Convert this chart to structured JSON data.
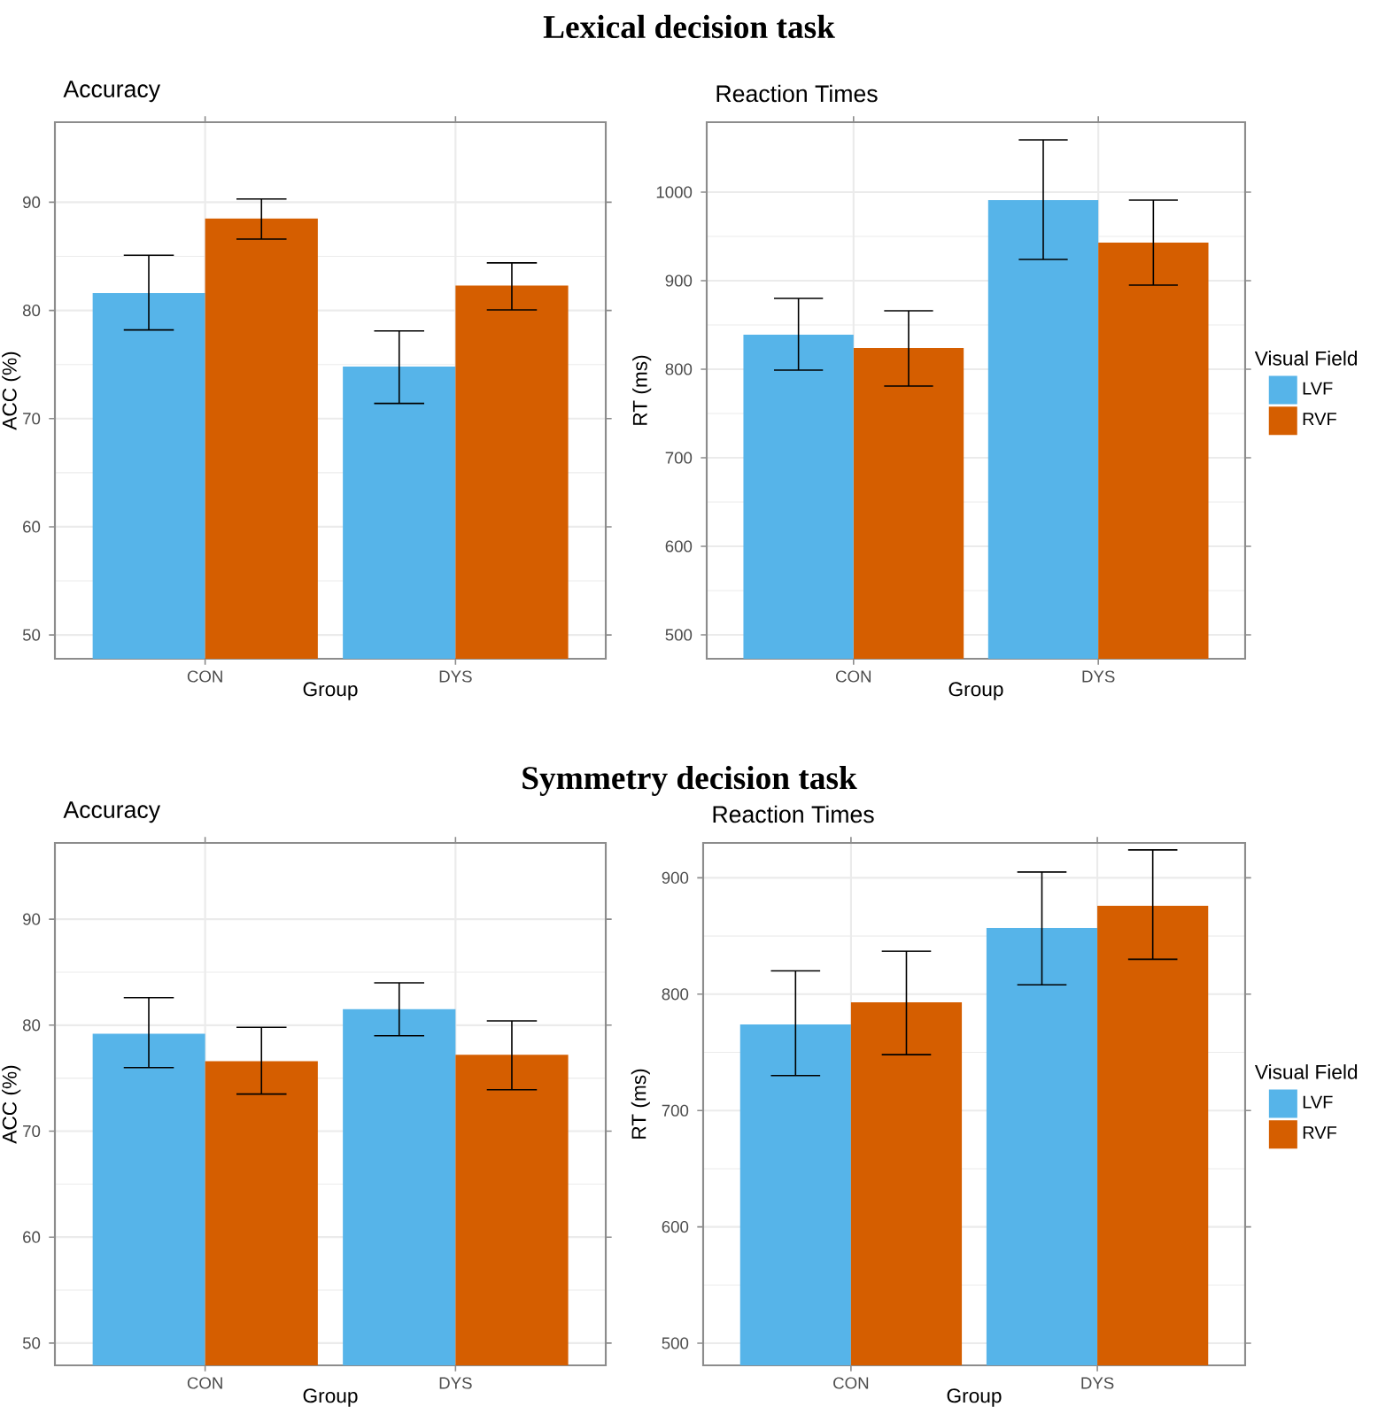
{
  "chart_data": [
    {
      "type": "bar",
      "title": "Accuracy",
      "xlabel": "Group",
      "ylabel": "ACC (%)",
      "annotations": [
        "Lexical decision task"
      ],
      "categories": [
        "CON",
        "DYS"
      ],
      "series": [
        {
          "color": "#56B4E9",
          "values": [
            81.6,
            74.8
          ],
          "errors": [
            [
              78.2,
              85.1
            ],
            [
              71.4,
              78.1
            ]
          ]
        },
        {
          "color": "#D55E00",
          "values": [
            88.5,
            82.3
          ],
          "errors": [
            [
              86.6,
              90.3
            ],
            [
              80.05,
              84.4
            ]
          ]
        }
      ],
      "ylim": [
        47.8,
        97.4
      ],
      "yticks": [
        50,
        60,
        70,
        80,
        90
      ],
      "grid": true,
      "legend": false
    },
    {
      "type": "bar",
      "title": "Reaction Times",
      "xlabel": "Group",
      "ylabel": "RT (ms)",
      "legend_title": "Visual Field",
      "categories": [
        "CON",
        "DYS"
      ],
      "series": [
        {
          "name": "LVF",
          "color": "#56B4E9",
          "values": [
            839,
            991
          ],
          "errors": [
            [
              799,
              880
            ],
            [
              924,
              1059
            ]
          ]
        },
        {
          "name": "RVF",
          "color": "#D55E00",
          "values": [
            824,
            943
          ],
          "errors": [
            [
              781,
              866
            ],
            [
              895,
              991
            ]
          ]
        }
      ],
      "ylim": [
        473,
        1079
      ],
      "yticks": [
        500,
        600,
        700,
        800,
        900,
        1000
      ],
      "grid": true,
      "legend": "right"
    },
    {
      "type": "bar",
      "title": "Accuracy",
      "xlabel": "Group",
      "ylabel": "ACC (%)",
      "annotations": [
        "Symmetry decision task"
      ],
      "categories": [
        "CON",
        "DYS"
      ],
      "series": [
        {
          "color": "#56B4E9",
          "values": [
            79.2,
            81.5
          ],
          "errors": [
            [
              76.0,
              82.6
            ],
            [
              79.0,
              84.0
            ]
          ]
        },
        {
          "color": "#D55E00",
          "values": [
            76.6,
            77.2
          ],
          "errors": [
            [
              73.5,
              79.8
            ],
            [
              73.9,
              80.4
            ]
          ]
        }
      ],
      "ylim": [
        47.9,
        97.2
      ],
      "yticks": [
        50,
        60,
        70,
        80,
        90
      ],
      "grid": true,
      "legend": false
    },
    {
      "type": "bar",
      "title": "Reaction Times",
      "xlabel": "Group",
      "ylabel": "RT (ms)",
      "legend_title": "Visual Field",
      "categories": [
        "CON",
        "DYS"
      ],
      "series": [
        {
          "name": "LVF",
          "color": "#56B4E9",
          "values": [
            774,
            857
          ],
          "errors": [
            [
              730,
              820
            ],
            [
              808,
              905
            ]
          ]
        },
        {
          "name": "RVF",
          "color": "#D55E00",
          "values": [
            793,
            876
          ],
          "errors": [
            [
              748,
              837
            ],
            [
              830,
              924
            ]
          ]
        }
      ],
      "ylim": [
        481,
        930
      ],
      "yticks": [
        500,
        600,
        700,
        800,
        900
      ],
      "grid": true,
      "legend": "right"
    }
  ]
}
